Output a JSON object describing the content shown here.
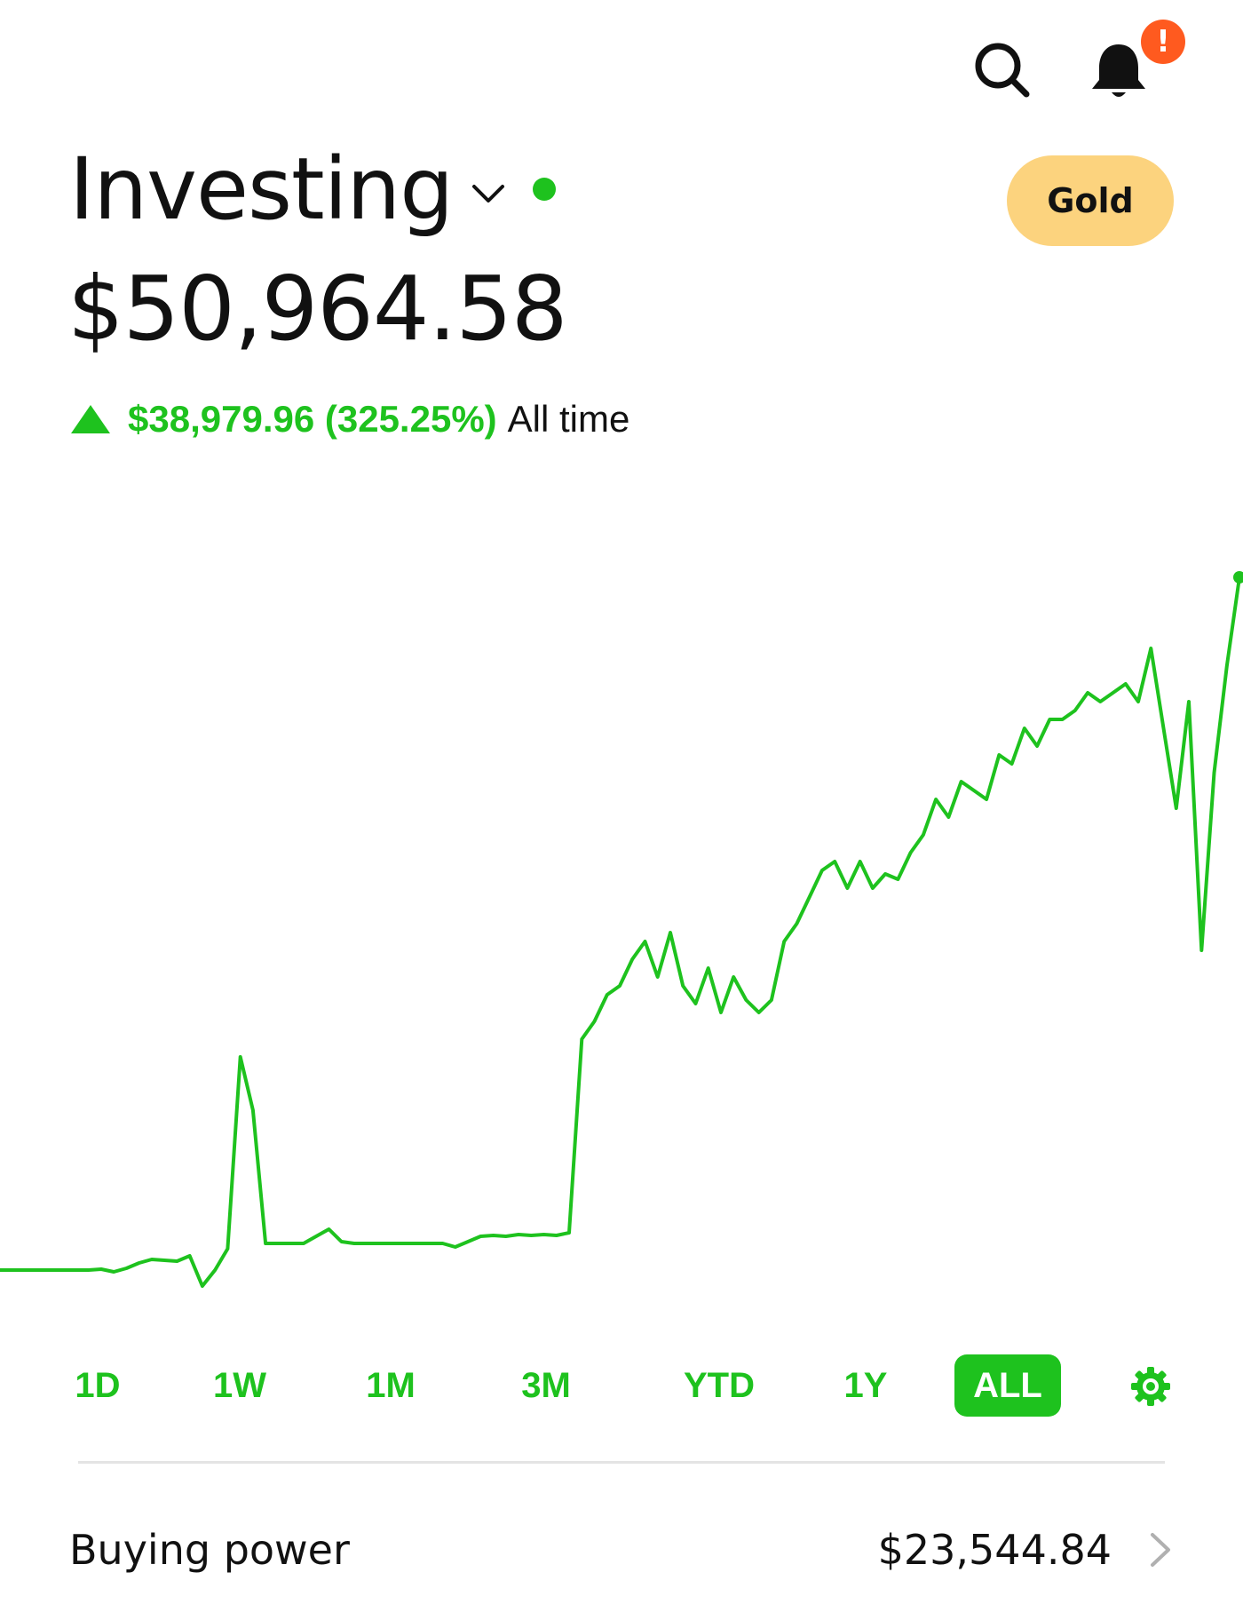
{
  "header": {
    "title": "Investing",
    "badge": "!",
    "gold_label": "Gold"
  },
  "portfolio": {
    "total_value": "$50,964.58",
    "change_amount": "$38,979.96 (325.25%)",
    "change_period": "All time"
  },
  "time_ranges": [
    {
      "label": "1D"
    },
    {
      "label": "1W"
    },
    {
      "label": "1M"
    },
    {
      "label": "3M"
    },
    {
      "label": "YTD"
    },
    {
      "label": "1Y"
    },
    {
      "label": "ALL"
    }
  ],
  "active_range": "ALL",
  "buying_power": {
    "label": "Buying power",
    "value": "$23,544.84"
  },
  "colors": {
    "accent_green": "#1ec21e",
    "badge_orange": "#ff5a1f",
    "gold": "#fcd37e"
  },
  "icons": [
    "search-icon",
    "bell-icon",
    "chevron-down-icon",
    "gear-icon",
    "chevron-right-icon"
  ],
  "chart_data": {
    "type": "line",
    "title": "",
    "xlabel": "",
    "ylabel": "",
    "grid": false,
    "series": [
      {
        "values": [
          12000,
          12000,
          12000,
          12000,
          12000,
          12000,
          12000,
          12000,
          12050,
          11900,
          12100,
          12400,
          12600,
          12550,
          12500,
          12800,
          11100,
          12000,
          13200,
          24000,
          21000,
          13500,
          13500,
          13500,
          13500,
          13900,
          14300,
          13600,
          13500,
          13500,
          13500,
          13500,
          13500,
          13500,
          13500,
          13500,
          13300,
          13600,
          13900,
          13950,
          13900,
          14000,
          13950,
          14000,
          13950,
          14100,
          25000,
          26000,
          27500,
          28000,
          29500,
          30500,
          28500,
          31000,
          28000,
          27000,
          29000,
          26500,
          28500,
          27200,
          26500,
          27200,
          30500,
          31500,
          33000,
          34500,
          35000,
          33500,
          35000,
          33500,
          34300,
          34000,
          35500,
          36500,
          38500,
          37500,
          39500,
          39000,
          38500,
          41000,
          40500,
          42500,
          41500,
          43000,
          43000,
          43500,
          44500,
          44000,
          44500,
          45000,
          44000,
          47000,
          42500,
          38000,
          44000,
          30000,
          40000,
          46000,
          51000
        ]
      }
    ],
    "ylim": [
      11000,
      52000
    ]
  }
}
